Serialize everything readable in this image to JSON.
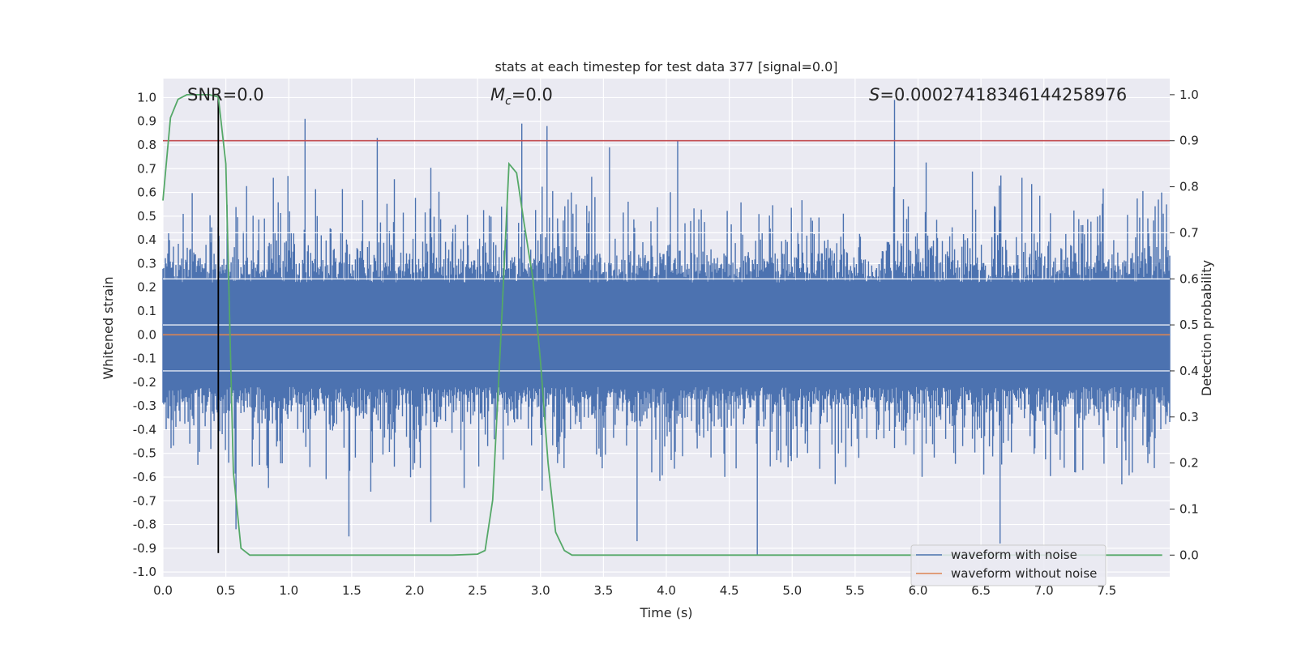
{
  "chart_data": {
    "type": "line",
    "title": "stats at each timestep for test data 377 [signal=0.0]",
    "xlabel": "Time (s)",
    "ylabel": "Whitened strain",
    "y2label": "Detection probability",
    "xlim": [
      0.0,
      8.0
    ],
    "ylim": [
      -1.02,
      1.08
    ],
    "y2lim": [
      -0.047,
      1.035
    ],
    "xticks": [
      "0.0",
      "0.5",
      "1.0",
      "1.5",
      "2.0",
      "2.5",
      "3.0",
      "3.5",
      "4.0",
      "4.5",
      "5.0",
      "5.5",
      "6.0",
      "6.5",
      "7.0",
      "7.5"
    ],
    "yticks": [
      "-1.0",
      "-0.9",
      "-0.8",
      "-0.7",
      "-0.6",
      "-0.5",
      "-0.4",
      "-0.3",
      "-0.2",
      "-0.1",
      "0.0",
      "0.1",
      "0.2",
      "0.3",
      "0.4",
      "0.5",
      "0.6",
      "0.7",
      "0.8",
      "0.9",
      "1.0"
    ],
    "y2ticks": [
      "0.0",
      "0.1",
      "0.2",
      "0.3",
      "0.4",
      "0.5",
      "0.6",
      "0.7",
      "0.8",
      "0.9",
      "1.0"
    ],
    "grid": true,
    "legend_position": "lower right",
    "annotations": {
      "snr": "SNR=0.0",
      "mc_symbol": "M",
      "mc_sub": "c",
      "mc_value": "=0.0",
      "s_symbol": "S",
      "s_value": "=0.00027418346144258976"
    },
    "colors": {
      "noise": "#4c72b0",
      "no_noise": "#dd8452",
      "probability": "#55a868",
      "threshold": "#c44e52",
      "marker": "#000000",
      "background": "#eaeaf2",
      "grid": "#ffffff"
    },
    "series": [
      {
        "name": "waveform with noise",
        "axis": "left",
        "color": "#4c72b0",
        "envelope": "noise, amplitude approx ±0.5 with peaks to 0.99 and -0.93",
        "peaks": [
          {
            "x": 1.13,
            "y": 0.91
          },
          {
            "x": 1.7,
            "y": 0.83
          },
          {
            "x": 2.85,
            "y": 0.89
          },
          {
            "x": 3.05,
            "y": 0.88
          },
          {
            "x": 3.55,
            "y": 0.79
          },
          {
            "x": 4.09,
            "y": 0.82
          },
          {
            "x": 5.81,
            "y": 0.99
          },
          {
            "x": 0.58,
            "y": -0.82
          },
          {
            "x": 1.48,
            "y": -0.85
          },
          {
            "x": 2.13,
            "y": -0.79
          },
          {
            "x": 3.77,
            "y": -0.87
          },
          {
            "x": 4.72,
            "y": -0.93
          },
          {
            "x": 6.65,
            "y": -0.88
          }
        ]
      },
      {
        "name": "waveform without noise",
        "axis": "left",
        "color": "#dd8452",
        "x": [
          0.0,
          8.0
        ],
        "y": [
          0.0,
          0.0
        ]
      },
      {
        "name": "detection probability",
        "axis": "right",
        "color": "#55a868",
        "x": [
          0.0,
          0.06,
          0.12,
          0.19,
          0.25,
          0.31,
          0.37,
          0.44,
          0.5,
          0.56,
          0.62,
          0.69,
          0.75,
          0.81,
          1.0,
          1.5,
          2.0,
          2.3,
          2.5,
          2.56,
          2.62,
          2.69,
          2.75,
          2.81,
          2.87,
          2.94,
          3.0,
          3.06,
          3.12,
          3.19,
          3.25,
          3.5,
          4.0,
          5.0,
          6.0,
          7.0,
          7.94
        ],
        "y": [
          0.77,
          0.95,
          0.99,
          1.0,
          1.0,
          1.0,
          1.0,
          0.995,
          0.85,
          0.18,
          0.015,
          0.0,
          0.0,
          0.0,
          0.0,
          0.0,
          0.0,
          0.0,
          0.002,
          0.01,
          0.12,
          0.5,
          0.85,
          0.83,
          0.72,
          0.6,
          0.42,
          0.2,
          0.05,
          0.01,
          0.0,
          0.0,
          0.0,
          0.0,
          0.0,
          0.0,
          0.0
        ]
      }
    ],
    "threshold": {
      "axis": "right",
      "y": 0.9
    },
    "marker_line": {
      "x": 0.44,
      "y_from": -0.92,
      "y_to": 1.0
    }
  }
}
